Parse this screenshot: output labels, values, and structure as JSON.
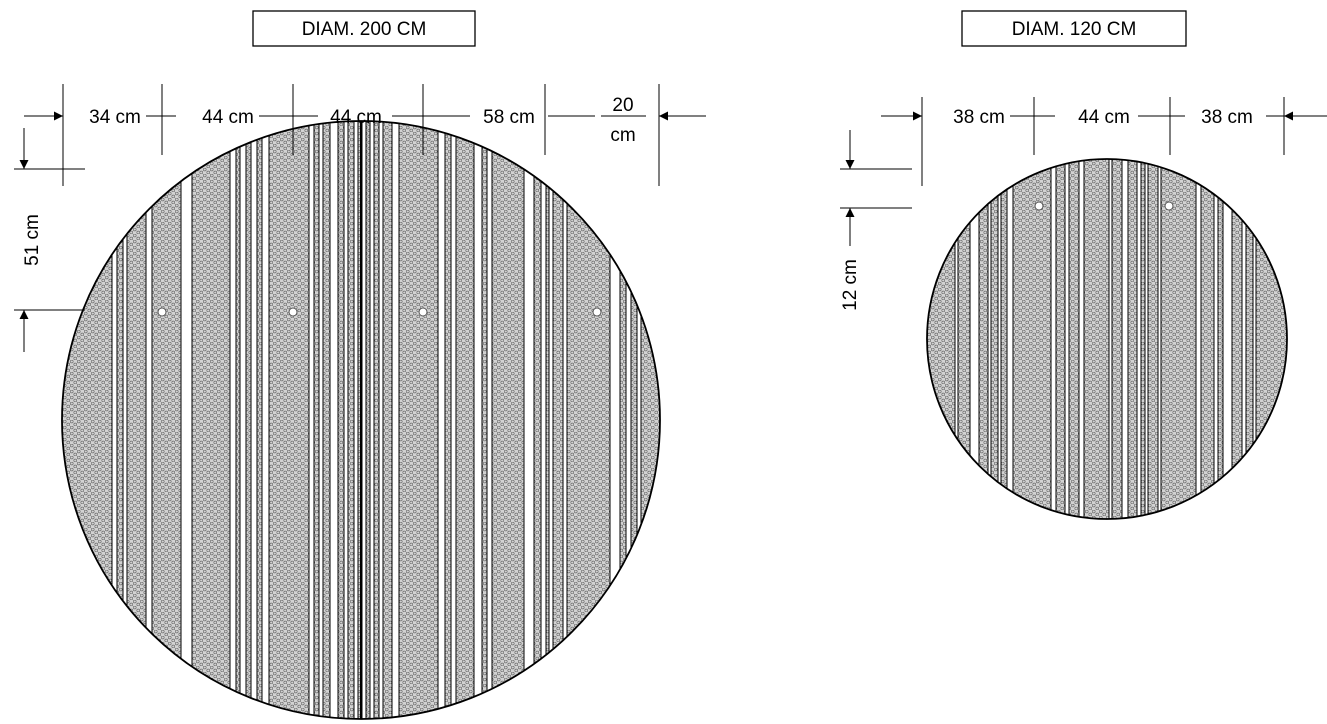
{
  "large_table": {
    "title": "DIAM. 200 CM",
    "dims": {
      "d1": "34 cm",
      "d2": "44 cm",
      "d3": "44 cm",
      "d4": "58 cm",
      "d5_top": "20",
      "d5_bottom": "cm",
      "vertical": "51 cm"
    }
  },
  "small_table": {
    "title": "DIAM. 120 CM",
    "dims": {
      "d1": "38 cm",
      "d2": "44 cm",
      "d3": "38 cm",
      "vertical": "12 cm"
    }
  },
  "colors": {
    "line": "#000000",
    "fill": "#b8b8b8",
    "background": "#ffffff"
  }
}
